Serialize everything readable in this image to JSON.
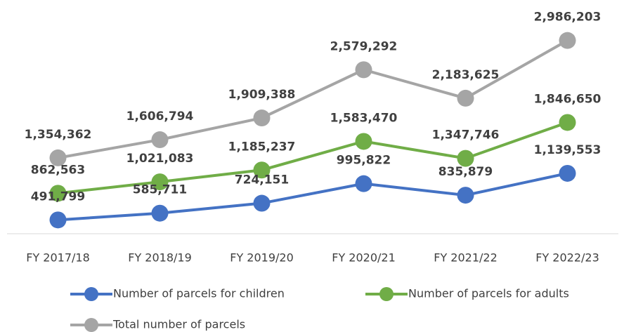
{
  "chart_data": {
    "type": "line",
    "categories": [
      "FY 2017/18",
      "FY 2018/19",
      "FY 2019/20",
      "FY 2020/21",
      "FY 2021/22",
      "FY 2022/23"
    ],
    "series": [
      {
        "name": "Number of parcels for children",
        "color": "#4472c4",
        "values": [
          491799,
          585711,
          724151,
          995822,
          835879,
          1139553
        ],
        "value_labels": [
          "491,799",
          "585,711",
          "724,151",
          "995,822",
          "835,879",
          "1,139,553"
        ]
      },
      {
        "name": "Number of parcels for adults",
        "color": "#70ad47",
        "values": [
          862563,
          1021083,
          1185237,
          1583470,
          1347746,
          1846650
        ],
        "value_labels": [
          "862,563",
          "1,021,083",
          "1,185,237",
          "1,583,470",
          "1,347,746",
          "1,846,650"
        ]
      },
      {
        "name": "Total number of parcels",
        "color": "#a5a5a5",
        "values": [
          1354362,
          1606794,
          1909388,
          2579292,
          2183625,
          2986203
        ],
        "value_labels": [
          "1,354,362",
          "1,606,794",
          "1,909,388",
          "2,579,292",
          "2,183,625",
          "2,986,203"
        ]
      }
    ],
    "ylim": [
      300000,
      3500000
    ]
  }
}
